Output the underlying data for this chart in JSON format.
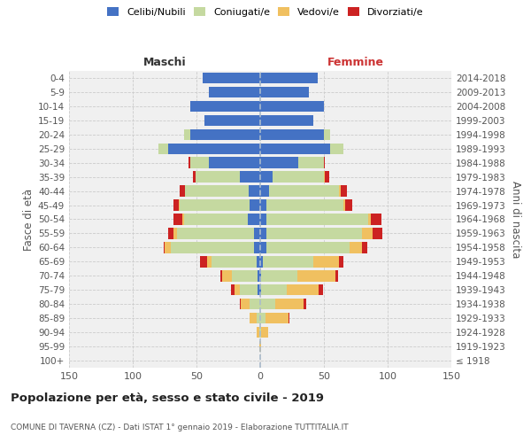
{
  "age_groups": [
    "100+",
    "95-99",
    "90-94",
    "85-89",
    "80-84",
    "75-79",
    "70-74",
    "65-69",
    "60-64",
    "55-59",
    "50-54",
    "45-49",
    "40-44",
    "35-39",
    "30-34",
    "25-29",
    "20-24",
    "15-19",
    "10-14",
    "5-9",
    "0-4"
  ],
  "birth_years": [
    "≤ 1918",
    "1919-1923",
    "1924-1928",
    "1929-1933",
    "1934-1938",
    "1939-1943",
    "1944-1948",
    "1949-1953",
    "1954-1958",
    "1959-1963",
    "1964-1968",
    "1969-1973",
    "1974-1978",
    "1979-1983",
    "1984-1988",
    "1989-1993",
    "1994-1998",
    "1999-2003",
    "2004-2008",
    "2009-2013",
    "2014-2018"
  ],
  "males": {
    "celibi": [
      0,
      0,
      0,
      0,
      0,
      2,
      2,
      3,
      5,
      5,
      10,
      8,
      9,
      16,
      40,
      72,
      55,
      44,
      55,
      40,
      45
    ],
    "coniugati": [
      0,
      0,
      1,
      3,
      8,
      14,
      20,
      35,
      65,
      60,
      50,
      55,
      50,
      35,
      15,
      8,
      5,
      0,
      0,
      0,
      0
    ],
    "vedovi": [
      0,
      1,
      2,
      5,
      7,
      4,
      8,
      4,
      5,
      3,
      1,
      1,
      0,
      0,
      0,
      0,
      0,
      0,
      0,
      0,
      0
    ],
    "divorziati": [
      0,
      0,
      0,
      0,
      1,
      3,
      1,
      5,
      1,
      4,
      7,
      4,
      4,
      2,
      1,
      0,
      0,
      0,
      0,
      0,
      0
    ]
  },
  "females": {
    "nubili": [
      0,
      0,
      0,
      0,
      0,
      1,
      1,
      2,
      5,
      5,
      5,
      5,
      7,
      10,
      30,
      55,
      50,
      42,
      50,
      38,
      45
    ],
    "coniugate": [
      0,
      0,
      1,
      4,
      12,
      20,
      28,
      40,
      65,
      75,
      80,
      60,
      55,
      40,
      20,
      10,
      5,
      0,
      0,
      0,
      0
    ],
    "vedove": [
      0,
      1,
      5,
      18,
      22,
      25,
      30,
      20,
      10,
      8,
      2,
      2,
      1,
      1,
      0,
      0,
      0,
      0,
      0,
      0,
      0
    ],
    "divorziate": [
      0,
      0,
      0,
      1,
      2,
      3,
      2,
      3,
      4,
      8,
      8,
      5,
      5,
      3,
      1,
      0,
      0,
      0,
      0,
      0,
      0
    ]
  },
  "colors": {
    "celibi": "#4472c4",
    "coniugati": "#c5d9a0",
    "vedovi": "#f0c060",
    "divorziati": "#cc2222"
  },
  "background_color": "#f0f0f0",
  "grid_color": "#cccccc",
  "title": "Popolazione per età, sesso e stato civile - 2019",
  "subtitle": "COMUNE DI TAVERNA (CZ) - Dati ISTAT 1° gennaio 2019 - Elaborazione TUTTITALIA.IT",
  "xlabel_left": "Maschi",
  "xlabel_right": "Femmine",
  "ylabel_left": "Fasce di età",
  "ylabel_right": "Anni di nascita",
  "xlim": 150,
  "legend_labels": [
    "Celibi/Nubili",
    "Coniugati/e",
    "Vedovi/e",
    "Divorziati/e"
  ]
}
